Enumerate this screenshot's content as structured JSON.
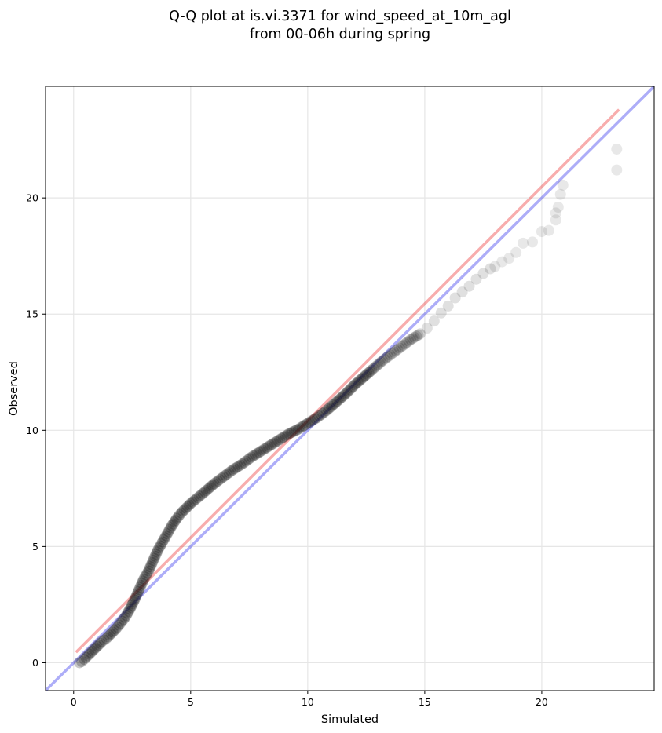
{
  "chart_data": {
    "type": "scatter",
    "title_line1": "Q-Q plot at is.vi.3371 for wind_speed_at_10m_agl",
    "title_line2": "from 00-06h during spring",
    "xlabel": "Simulated",
    "ylabel": "Observed",
    "xlim": [
      -1.2,
      24.8
    ],
    "ylim": [
      -1.2,
      24.8
    ],
    "xticks": [
      0,
      5,
      10,
      15,
      20
    ],
    "yticks": [
      0,
      5,
      10,
      15,
      20
    ],
    "grid": true,
    "colors": {
      "points": "#000000",
      "identity_line": "#3333ee",
      "fit_line": "#ee3333",
      "grid": "#e6e6e6"
    },
    "identity_line": {
      "x": [
        -1.2,
        24.8
      ],
      "y": [
        -1.2,
        24.8
      ]
    },
    "fit_line": {
      "x": [
        0.1,
        23.3
      ],
      "y": [
        0.45,
        23.8
      ]
    },
    "qq_points": {
      "x": [
        0.25,
        0.35,
        0.45,
        0.6,
        0.8,
        1.0,
        1.2,
        1.4,
        1.6,
        1.8,
        2.0,
        2.2,
        2.4,
        2.6,
        2.8,
        3.0,
        3.2,
        3.4,
        3.6,
        3.8,
        4.0,
        4.2,
        4.4,
        4.6,
        4.8,
        5.0,
        5.3,
        5.6,
        6.0,
        6.4,
        6.8,
        7.2,
        7.6,
        8.0,
        8.4,
        8.8,
        9.2,
        9.6,
        10.0,
        10.4,
        10.8,
        11.2,
        11.6,
        12.0,
        12.4,
        12.8,
        13.2,
        13.6,
        14.0,
        14.4,
        14.8,
        15.1,
        15.4,
        15.7,
        16.0,
        16.3,
        16.6,
        16.9,
        17.2,
        17.5,
        17.8,
        18.0,
        18.3,
        18.6,
        18.9,
        19.2,
        19.6,
        20.0,
        20.3,
        20.6,
        20.6,
        20.7,
        20.8,
        20.9,
        23.2,
        23.2
      ],
      "y": [
        0.0,
        0.05,
        0.15,
        0.3,
        0.5,
        0.7,
        0.9,
        1.05,
        1.25,
        1.45,
        1.7,
        1.95,
        2.3,
        2.7,
        3.15,
        3.6,
        3.95,
        4.4,
        4.85,
        5.2,
        5.55,
        5.9,
        6.2,
        6.45,
        6.65,
        6.85,
        7.1,
        7.35,
        7.7,
        8.0,
        8.3,
        8.55,
        8.85,
        9.1,
        9.35,
        9.6,
        9.85,
        10.05,
        10.3,
        10.55,
        10.85,
        11.2,
        11.55,
        11.95,
        12.3,
        12.65,
        13.0,
        13.3,
        13.6,
        13.9,
        14.15,
        14.4,
        14.7,
        15.05,
        15.35,
        15.7,
        15.95,
        16.2,
        16.5,
        16.75,
        16.95,
        17.05,
        17.25,
        17.4,
        17.65,
        18.05,
        18.1,
        18.55,
        18.6,
        19.05,
        19.35,
        19.6,
        20.15,
        20.55,
        21.2,
        22.1
      ]
    }
  }
}
